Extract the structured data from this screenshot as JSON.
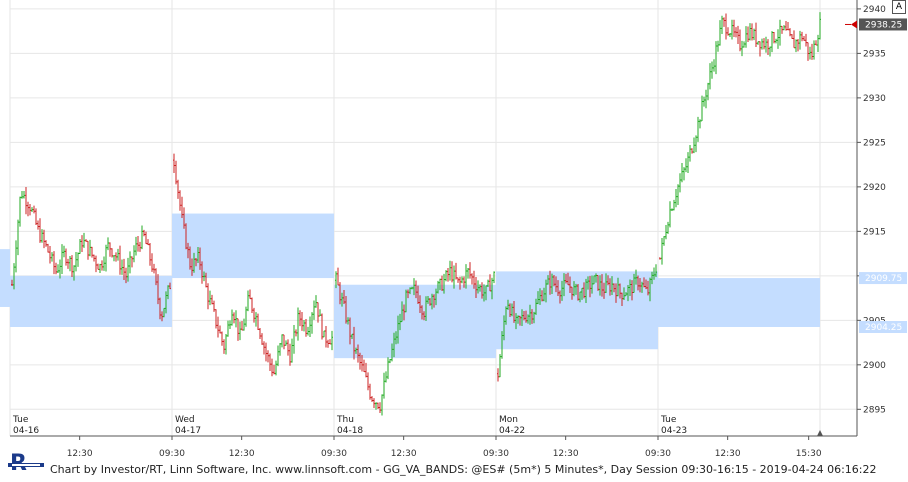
{
  "footer": {
    "text": "Chart by Investor/RT, Linn Software, Inc. www.linnsoft.com - GG_VA_BANDS: @ES# (5m*) 5 Minutes*, Day Session 09:30-16:15 - 2019-04-24 06:16:22"
  },
  "logo": {
    "letter": "R",
    "icon": "investor-rt-logo-icon"
  },
  "auto_scale_label": "A",
  "colors": {
    "up_bar": "#22aa22",
    "down_bar": "#cc2222",
    "value_area": "#c4ddff",
    "grid": "#e6e6e6",
    "last_price_arrow": "#cc0000"
  },
  "chart_data": {
    "type": "ohlc",
    "y_axis": {
      "range": [
        2892,
        2941
      ],
      "ticks": [
        2895,
        2900,
        2905,
        2910,
        2915,
        2920,
        2925,
        2930,
        2935,
        2940
      ],
      "side": "right"
    },
    "badges": {
      "last_price": "2938.25",
      "va_high": "2909.75",
      "va_low": "2904.25"
    },
    "sessions": [
      {
        "day": "Tue",
        "date": "04-16",
        "time_ticks": [
          "12:30"
        ],
        "value_area": {
          "low": 2904.25,
          "high": 2910.0,
          "prior": {
            "low": 2906.5,
            "high": 2913.0
          }
        },
        "path": [
          2909.0,
          2919.5,
          2918.0,
          2915.0,
          2913.0,
          2910.5,
          2912.5,
          2911.0,
          2914.0,
          2912.5,
          2911.0,
          2913.5,
          2912.0,
          2910.0,
          2913.0,
          2914.5,
          2911.0,
          2905.5,
          2909.0
        ]
      },
      {
        "day": "Wed",
        "date": "04-17",
        "time_ticks": [
          "09:30",
          "12:30"
        ],
        "value_area": {
          "low": 2909.75,
          "high": 2917.0
        },
        "path": [
          2923.0,
          2916.0,
          2911.0,
          2912.0,
          2908.0,
          2905.0,
          2902.0,
          2906.5,
          2903.0,
          2907.5,
          2905.0,
          2901.5,
          2899.0,
          2903.0,
          2901.0,
          2905.5,
          2904.0,
          2907.5,
          2903.0,
          2903.0
        ]
      },
      {
        "day": "Thu",
        "date": "04-18",
        "time_ticks": [
          "09:30",
          "12:30"
        ],
        "value_area": {
          "low": 2900.75,
          "high": 2909.0
        },
        "path": [
          2909.5,
          2906.0,
          2902.0,
          2899.5,
          2896.5,
          2895.5,
          2900.0,
          2904.0,
          2907.5,
          2908.5,
          2906.0,
          2908.0,
          2909.0,
          2910.5,
          2909.0,
          2910.5,
          2909.0,
          2908.0,
          2910.0
        ]
      },
      {
        "day": "Mon",
        "date": "04-22",
        "time_ticks": [
          "09:30",
          "12:30"
        ],
        "value_area": {
          "low": 2901.75,
          "high": 2910.5
        },
        "path": [
          2899.0,
          2907.5,
          2904.5,
          2905.5,
          2906.0,
          2908.0,
          2909.5,
          2908.5,
          2909.0,
          2908.0,
          2908.5,
          2909.5,
          2908.5,
          2909.0,
          2908.0,
          2908.5,
          2909.5,
          2908.0,
          2911.0
        ]
      },
      {
        "day": "Tue",
        "date": "04-23",
        "time_ticks": [
          "09:30",
          "12:30",
          "15:30"
        ],
        "value_area": {
          "low": 2904.25,
          "high": 2909.75
        },
        "path": [
          2912.0,
          2917.0,
          2920.0,
          2922.5,
          2926.0,
          2930.0,
          2934.0,
          2938.5,
          2937.5,
          2936.0,
          2937.5,
          2936.5,
          2936.0,
          2937.0,
          2937.5,
          2936.0,
          2937.0,
          2934.5,
          2938.25
        ]
      }
    ]
  }
}
